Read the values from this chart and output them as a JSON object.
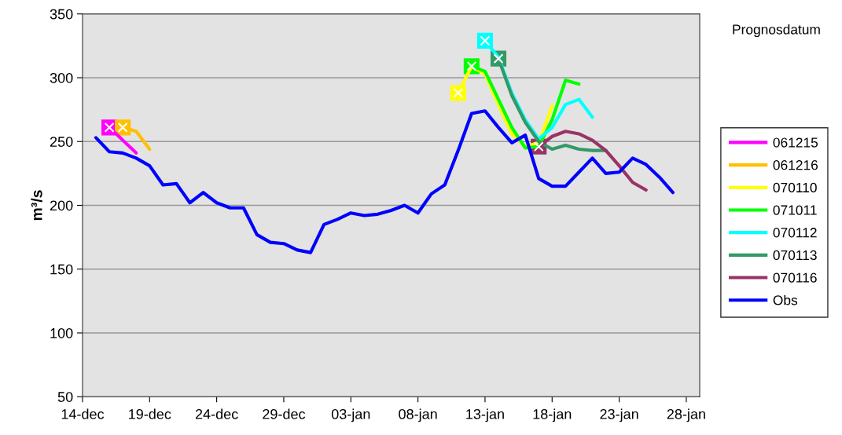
{
  "chart_data": {
    "type": "line",
    "ylabel": "m³/s",
    "legend_title": "Prognosdatum",
    "ylim": [
      50,
      350
    ],
    "yticks": [
      50,
      100,
      150,
      200,
      250,
      300,
      350
    ],
    "categories": [
      "14-dec",
      null,
      null,
      null,
      null,
      "19-dec",
      null,
      null,
      null,
      null,
      "24-dec",
      null,
      null,
      null,
      null,
      "29-dec",
      null,
      null,
      null,
      null,
      "03-jan",
      null,
      null,
      null,
      null,
      "08-jan",
      null,
      null,
      null,
      null,
      "13-jan",
      null,
      null,
      null,
      null,
      "18-jan",
      null,
      null,
      null,
      null,
      "23-jan",
      null,
      null,
      null,
      null,
      "28-jan"
    ],
    "grid": "y",
    "legend": "right",
    "marker": "none",
    "line_style": "solid",
    "series": [
      {
        "name": "061215",
        "color": "#ff00ff",
        "values": [
          null,
          null,
          261,
          251,
          241,
          null,
          null,
          null,
          null,
          null,
          null,
          null,
          null,
          null,
          null,
          null,
          null,
          null,
          null,
          null,
          null,
          null,
          null,
          null,
          null,
          null,
          null,
          null,
          null,
          null,
          null,
          null,
          null,
          null,
          null,
          null,
          null,
          null,
          null,
          null,
          null,
          null,
          null,
          null,
          null,
          null
        ]
      },
      {
        "name": "061216",
        "color": "#ffc000",
        "values": [
          null,
          null,
          null,
          261,
          258,
          244,
          null,
          null,
          null,
          null,
          null,
          null,
          null,
          null,
          null,
          null,
          null,
          null,
          null,
          null,
          null,
          null,
          null,
          null,
          null,
          null,
          null,
          null,
          null,
          null,
          null,
          null,
          null,
          null,
          null,
          null,
          null,
          null,
          null,
          null,
          null,
          null,
          null,
          null,
          null,
          null
        ]
      },
      {
        "name": "070110",
        "color": "#ffff00",
        "values": [
          null,
          null,
          null,
          null,
          null,
          null,
          null,
          null,
          null,
          null,
          null,
          null,
          null,
          null,
          null,
          null,
          null,
          null,
          null,
          null,
          null,
          null,
          null,
          null,
          null,
          null,
          null,
          null,
          288,
          309,
          303,
          279,
          256,
          246,
          249,
          278,
          null,
          null,
          null,
          null,
          null,
          null,
          null,
          null,
          null,
          null
        ]
      },
      {
        "name": "071011",
        "color": "#00ff00",
        "values": [
          null,
          null,
          null,
          null,
          null,
          null,
          null,
          null,
          null,
          null,
          null,
          null,
          null,
          null,
          null,
          null,
          null,
          null,
          null,
          null,
          null,
          null,
          null,
          null,
          null,
          null,
          null,
          null,
          null,
          309,
          305,
          283,
          261,
          245,
          246,
          267,
          298,
          295,
          null,
          null,
          null,
          null,
          null,
          null,
          null,
          null
        ]
      },
      {
        "name": "070112",
        "color": "#00ffff",
        "values": [
          null,
          null,
          null,
          null,
          null,
          null,
          null,
          null,
          null,
          null,
          null,
          null,
          null,
          null,
          null,
          null,
          null,
          null,
          null,
          null,
          null,
          null,
          null,
          null,
          null,
          null,
          null,
          null,
          null,
          null,
          329,
          316,
          288,
          267,
          252,
          261,
          279,
          283,
          269,
          null,
          null,
          null,
          null,
          null,
          null,
          null
        ]
      },
      {
        "name": "070113",
        "color": "#339966",
        "values": [
          null,
          null,
          null,
          null,
          null,
          null,
          null,
          null,
          null,
          null,
          null,
          null,
          null,
          null,
          null,
          null,
          null,
          null,
          null,
          null,
          null,
          null,
          null,
          null,
          null,
          null,
          null,
          null,
          null,
          null,
          null,
          315,
          286,
          265,
          250,
          244,
          247,
          244,
          243,
          243,
          null,
          null,
          null,
          null,
          null,
          null
        ]
      },
      {
        "name": "070116",
        "color": "#993366",
        "values": [
          null,
          null,
          null,
          null,
          null,
          null,
          null,
          null,
          null,
          null,
          null,
          null,
          null,
          null,
          null,
          null,
          null,
          null,
          null,
          null,
          null,
          null,
          null,
          null,
          null,
          null,
          null,
          null,
          null,
          null,
          null,
          null,
          null,
          null,
          246,
          254,
          258,
          256,
          251,
          243,
          231,
          218,
          212,
          null,
          null,
          null
        ]
      },
      {
        "name": "Obs",
        "color": "#0000ff",
        "values": [
          null,
          253,
          242,
          241,
          237,
          231,
          216,
          217,
          202,
          210,
          202,
          198,
          198,
          177,
          171,
          170,
          165,
          163,
          185,
          189,
          194,
          192,
          193,
          196,
          200,
          194,
          209,
          216,
          243,
          272,
          274,
          261,
          249,
          255,
          221,
          215,
          215,
          226,
          237,
          225,
          226,
          237,
          232,
          222,
          210,
          null
        ]
      },
      {
        "type": "scatter",
        "marker": "square",
        "values": [
          null,
          null,
          261,
          261,
          null,
          null,
          null,
          null,
          null,
          null,
          null,
          null,
          null,
          null,
          null,
          null,
          null,
          null,
          null,
          null,
          null,
          null,
          null,
          null,
          null,
          null,
          null,
          null,
          288,
          309,
          329,
          315,
          null,
          null,
          246,
          null,
          null,
          null,
          null,
          null,
          null,
          null,
          null,
          null,
          null,
          null
        ],
        "colors": [
          null,
          null,
          "#ff00ff",
          "#ffc000",
          null,
          null,
          null,
          null,
          null,
          null,
          null,
          null,
          null,
          null,
          null,
          null,
          null,
          null,
          null,
          null,
          null,
          null,
          null,
          null,
          null,
          null,
          null,
          null,
          "#ffff00",
          "#00ff00",
          "#00ffff",
          "#339966",
          null,
          null,
          "#993366",
          null,
          null,
          null,
          null,
          null,
          null,
          null,
          null,
          null,
          null,
          null
        ]
      }
    ]
  }
}
